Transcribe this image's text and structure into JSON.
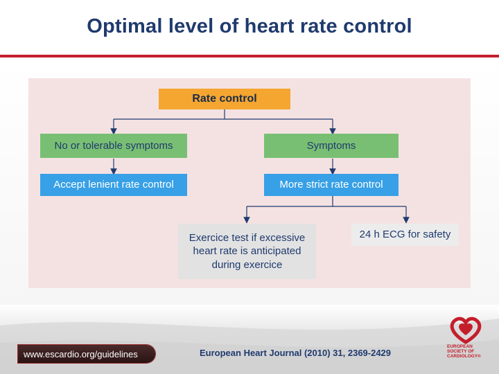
{
  "slide": {
    "title": "Optimal level of heart rate control"
  },
  "diagram": {
    "root": "Rate control",
    "left_condition": "No or tolerable symptoms",
    "left_action": "Accept lenient rate control",
    "right_condition": "Symptoms",
    "right_action": "More strict rate control",
    "option_exercise": "Exercice test if excessive heart rate is anticipated during exercice",
    "option_ecg": "24 h ECG for safety"
  },
  "footer": {
    "url": "www.escardio.org/guidelines",
    "journal": "European Heart Journal (2010) 31, 2369-2429",
    "logo_text": "EUROPEAN SOCIETY OF CARDIOLOGY®"
  },
  "colors": {
    "accent_red": "#c41e2b",
    "title_blue": "#1f3a6e",
    "root_orange": "#f4a630",
    "condition_green": "#79bf73",
    "action_blue": "#37a0e6",
    "panel_pink": "#f4e2e2"
  }
}
